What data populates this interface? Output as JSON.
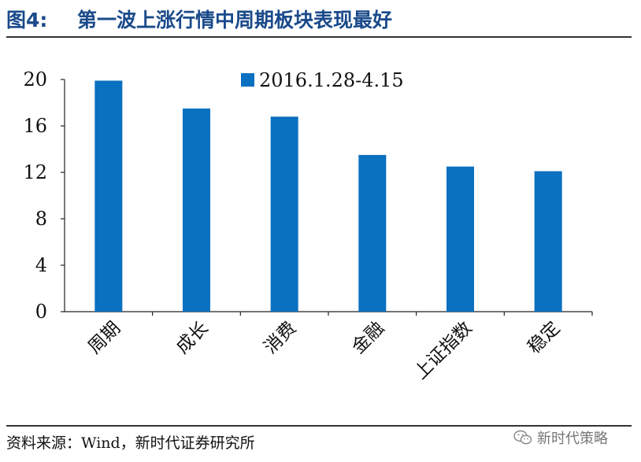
{
  "header": {
    "figure_label": "图4:",
    "title": "第一波上涨行情中周期板块表现最好"
  },
  "chart_data": {
    "type": "bar",
    "categories": [
      "周期",
      "成长",
      "消费",
      "金融",
      "上证指数",
      "稳定"
    ],
    "series": [
      {
        "name": "2016.1.28-4.15",
        "values": [
          19.9,
          17.5,
          16.8,
          13.5,
          12.5,
          12.1
        ],
        "color": "#0a70c0"
      }
    ],
    "ylim": [
      0,
      20
    ],
    "yticks": [
      0,
      4,
      8,
      12,
      16,
      20
    ],
    "grid": false,
    "legend_position": "top-center"
  },
  "footer": {
    "source": "资料来源：Wind，新时代证券研究所"
  },
  "watermark": {
    "text": "新时代策略",
    "icon": "wechat-icon"
  }
}
